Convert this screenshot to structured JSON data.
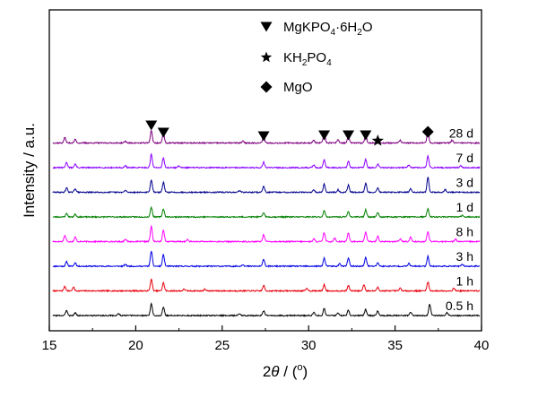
{
  "chart_data": {
    "type": "line",
    "x_axis": {
      "label_prefix": "2",
      "label_symbol": "θ",
      "label_suffix": " / (",
      "label_degree": "o",
      "label_close": ")",
      "range": [
        15,
        40
      ],
      "ticks": [
        15,
        20,
        25,
        30,
        35,
        40
      ]
    },
    "y_axis": {
      "label": "Intensity / a.u.",
      "tick_labels": false
    },
    "grid": false,
    "stacked": true,
    "series": [
      {
        "name": "0.5 h",
        "color": "#000000",
        "seed": 3,
        "peaks": [
          [
            16.0,
            6
          ],
          [
            16.5,
            3
          ],
          [
            19.0,
            2
          ],
          [
            20.9,
            13
          ],
          [
            21.6,
            9
          ],
          [
            26.0,
            2
          ],
          [
            27.4,
            5
          ],
          [
            30.3,
            4
          ],
          [
            30.9,
            8
          ],
          [
            31.7,
            3
          ],
          [
            32.3,
            6
          ],
          [
            33.3,
            7
          ],
          [
            34.0,
            5
          ],
          [
            35.9,
            4
          ],
          [
            37.0,
            13
          ],
          [
            38.0,
            3
          ]
        ]
      },
      {
        "name": "1 h",
        "color": "#e8000b",
        "seed": 7,
        "peaks": [
          [
            15.9,
            5
          ],
          [
            16.4,
            4
          ],
          [
            20.9,
            13
          ],
          [
            21.6,
            9
          ],
          [
            22.8,
            2
          ],
          [
            24.0,
            2
          ],
          [
            27.4,
            6
          ],
          [
            29.9,
            3
          ],
          [
            30.9,
            7
          ],
          [
            32.3,
            6
          ],
          [
            33.2,
            7
          ],
          [
            34.0,
            4
          ],
          [
            35.3,
            3
          ],
          [
            36.9,
            10
          ],
          [
            38.4,
            3
          ]
        ]
      },
      {
        "name": "3 h",
        "color": "#0000e6",
        "seed": 11,
        "peaks": [
          [
            16.0,
            5
          ],
          [
            16.5,
            4
          ],
          [
            19.4,
            2
          ],
          [
            20.9,
            17
          ],
          [
            21.6,
            13
          ],
          [
            26.2,
            2
          ],
          [
            27.4,
            8
          ],
          [
            30.9,
            9
          ],
          [
            31.8,
            3
          ],
          [
            32.3,
            9
          ],
          [
            33.3,
            10
          ],
          [
            34.0,
            4
          ],
          [
            35.8,
            3
          ],
          [
            36.9,
            11
          ],
          [
            38.9,
            2
          ]
        ]
      },
      {
        "name": "8 h",
        "color": "#ff00ff",
        "seed": 17,
        "peaks": [
          [
            15.9,
            7
          ],
          [
            16.5,
            5
          ],
          [
            19.4,
            3
          ],
          [
            20.9,
            17
          ],
          [
            21.6,
            13
          ],
          [
            23.0,
            2
          ],
          [
            27.4,
            8
          ],
          [
            30.3,
            3
          ],
          [
            30.9,
            10
          ],
          [
            31.5,
            4
          ],
          [
            32.3,
            10
          ],
          [
            33.3,
            11
          ],
          [
            34.0,
            6
          ],
          [
            35.3,
            3
          ],
          [
            35.9,
            5
          ],
          [
            36.9,
            11
          ],
          [
            38.5,
            3
          ]
        ]
      },
      {
        "name": "1 d",
        "color": "#008000",
        "seed": 23,
        "peaks": [
          [
            16.0,
            4
          ],
          [
            16.5,
            3
          ],
          [
            20.9,
            11
          ],
          [
            21.6,
            9
          ],
          [
            27.4,
            5
          ],
          [
            30.9,
            7
          ],
          [
            32.3,
            6
          ],
          [
            33.3,
            8
          ],
          [
            34.0,
            5
          ],
          [
            36.9,
            9
          ],
          [
            38.9,
            2
          ]
        ]
      },
      {
        "name": "3 d",
        "color": "#00008b",
        "seed": 29,
        "peaks": [
          [
            16.0,
            5
          ],
          [
            16.5,
            4
          ],
          [
            19.4,
            2
          ],
          [
            20.9,
            14
          ],
          [
            21.6,
            11
          ],
          [
            26.0,
            2
          ],
          [
            27.4,
            7
          ],
          [
            30.3,
            3
          ],
          [
            30.9,
            9
          ],
          [
            31.7,
            3
          ],
          [
            32.3,
            8
          ],
          [
            33.3,
            10
          ],
          [
            34.0,
            5
          ],
          [
            35.9,
            4
          ],
          [
            36.9,
            17
          ],
          [
            37.9,
            3
          ]
        ]
      },
      {
        "name": "7 d",
        "color": "#8b00ff",
        "seed": 31,
        "peaks": [
          [
            16.0,
            6
          ],
          [
            16.5,
            4
          ],
          [
            19.4,
            2
          ],
          [
            20.9,
            15
          ],
          [
            21.6,
            11
          ],
          [
            22.5,
            2
          ],
          [
            27.4,
            6
          ],
          [
            30.3,
            3
          ],
          [
            30.9,
            9
          ],
          [
            32.3,
            7
          ],
          [
            33.3,
            9
          ],
          [
            34.0,
            4
          ],
          [
            35.8,
            3
          ],
          [
            36.9,
            13
          ],
          [
            38.8,
            2
          ]
        ]
      },
      {
        "name": "28 d",
        "color": "#800080",
        "seed": 37,
        "peaks": [
          [
            15.9,
            6
          ],
          [
            16.5,
            4
          ],
          [
            19.4,
            2
          ],
          [
            20.9,
            14
          ],
          [
            21.6,
            11
          ],
          [
            26.2,
            2
          ],
          [
            27.4,
            8
          ],
          [
            30.3,
            3
          ],
          [
            30.9,
            11
          ],
          [
            31.7,
            4
          ],
          [
            32.3,
            8
          ],
          [
            33.3,
            10
          ],
          [
            34.0,
            6
          ],
          [
            35.3,
            3
          ],
          [
            36.9,
            13
          ],
          [
            38.3,
            3
          ]
        ]
      }
    ],
    "markers": [
      {
        "x": 20.9,
        "symbol": "down-triangle",
        "phase": "MgKPO4·6H2O"
      },
      {
        "x": 21.6,
        "symbol": "down-triangle",
        "phase": "MgKPO4·6H2O"
      },
      {
        "x": 27.4,
        "symbol": "down-triangle",
        "phase": "MgKPO4·6H2O"
      },
      {
        "x": 30.9,
        "symbol": "down-triangle",
        "phase": "MgKPO4·6H2O"
      },
      {
        "x": 32.3,
        "symbol": "down-triangle",
        "phase": "MgKPO4·6H2O"
      },
      {
        "x": 33.3,
        "symbol": "down-triangle",
        "phase": "MgKPO4·6H2O"
      },
      {
        "x": 34.0,
        "symbol": "star",
        "phase": "KH2PO4"
      },
      {
        "x": 36.9,
        "symbol": "diamond",
        "phase": "MgO"
      }
    ],
    "legend": {
      "placement": "top-center",
      "items": [
        {
          "symbol": "down-triangle",
          "parts": [
            [
              "MgKPO",
              "n"
            ],
            [
              "4",
              "sub"
            ],
            [
              "·6H",
              "n"
            ],
            [
              "2",
              "sub"
            ],
            [
              "O",
              "n"
            ]
          ]
        },
        {
          "symbol": "star",
          "parts": [
            [
              "KH",
              "n"
            ],
            [
              "2",
              "sub"
            ],
            [
              "PO",
              "n"
            ],
            [
              "4",
              "sub"
            ]
          ]
        },
        {
          "symbol": "diamond",
          "parts": [
            [
              "MgO",
              "n"
            ]
          ]
        }
      ]
    }
  }
}
